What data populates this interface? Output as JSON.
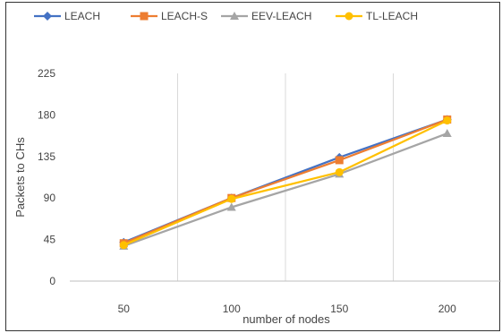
{
  "chart_data": {
    "type": "line",
    "title": "",
    "xlabel": "number of nodes",
    "ylabel": "Packets to CHs",
    "categories": [
      "50",
      "100",
      "150",
      "200"
    ],
    "ylim": [
      0,
      225
    ],
    "yticks": [
      0,
      45,
      90,
      135,
      180,
      225
    ],
    "grid": "vertical",
    "legend_position": "top",
    "series": [
      {
        "name": "LEACH",
        "color": "#4472C4",
        "marker": "diamond",
        "values": [
          42,
          90,
          134,
          175
        ]
      },
      {
        "name": "LEACH-S",
        "color": "#ED7D31",
        "marker": "square",
        "values": [
          41,
          90,
          131,
          175
        ]
      },
      {
        "name": "EEV-LEACH",
        "color": "#A5A5A5",
        "marker": "triangle",
        "values": [
          38,
          80,
          116,
          160
        ]
      },
      {
        "name": "TL-LEACH",
        "color": "#FFC000",
        "marker": "circle",
        "values": [
          39,
          89,
          118,
          174
        ]
      }
    ]
  }
}
